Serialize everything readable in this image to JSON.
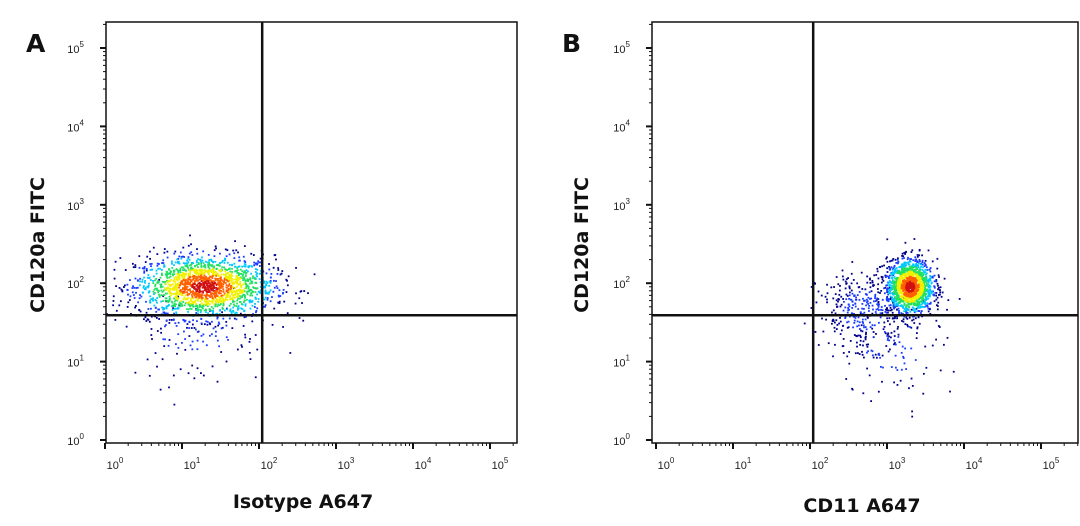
{
  "chart_data": [
    {
      "type": "scatter",
      "panel_label": "A",
      "xlabel": "Isotype A647",
      "ylabel": "CD120a FITC",
      "x_scale": "log",
      "y_scale": "log",
      "xlim": [
        1,
        200000
      ],
      "ylim": [
        1,
        200000
      ],
      "tick_base": "10",
      "x_tick_exponents": [
        "0",
        "1",
        "2",
        "3",
        "4",
        "5"
      ],
      "y_tick_exponents": [
        "0",
        "1",
        "2",
        "3",
        "4",
        "5"
      ],
      "quadrant_gate": {
        "x": 110,
        "y": 39
      },
      "populations": [
        {
          "center": [
            20,
            90
          ],
          "log_sd": [
            0.45,
            0.2
          ],
          "count": 1800
        },
        {
          "center": [
            15,
            25
          ],
          "log_sd": [
            0.45,
            0.35
          ],
          "count": 120
        }
      ],
      "colormap": [
        "#00008b",
        "#1a3cff",
        "#00c8ff",
        "#20e060",
        "#f0f000",
        "#ff6000",
        "#d01010"
      ]
    },
    {
      "type": "scatter",
      "panel_label": "B",
      "xlabel": "CD11 A647",
      "ylabel": "CD120a FITC",
      "x_scale": "log",
      "y_scale": "log",
      "xlim": [
        1,
        300000
      ],
      "ylim": [
        1,
        200000
      ],
      "tick_base": "10",
      "x_tick_exponents": [
        "0",
        "1",
        "2",
        "3",
        "4",
        "5"
      ],
      "y_tick_exponents": [
        "0",
        "1",
        "2",
        "3",
        "4",
        "5"
      ],
      "quadrant_gate": {
        "x": 110,
        "y": 39
      },
      "populations": [
        {
          "center": [
            2000,
            90
          ],
          "log_sd": [
            0.15,
            0.17
          ],
          "count": 1500
        },
        {
          "center": [
            500,
            45
          ],
          "log_sd": [
            0.3,
            0.25
          ],
          "count": 350
        },
        {
          "center": [
            1200,
            15
          ],
          "log_sd": [
            0.35,
            0.35
          ],
          "count": 90
        }
      ],
      "colormap": [
        "#00008b",
        "#1a3cff",
        "#00c8ff",
        "#20e060",
        "#f0f000",
        "#ff6000",
        "#d01010"
      ]
    }
  ]
}
